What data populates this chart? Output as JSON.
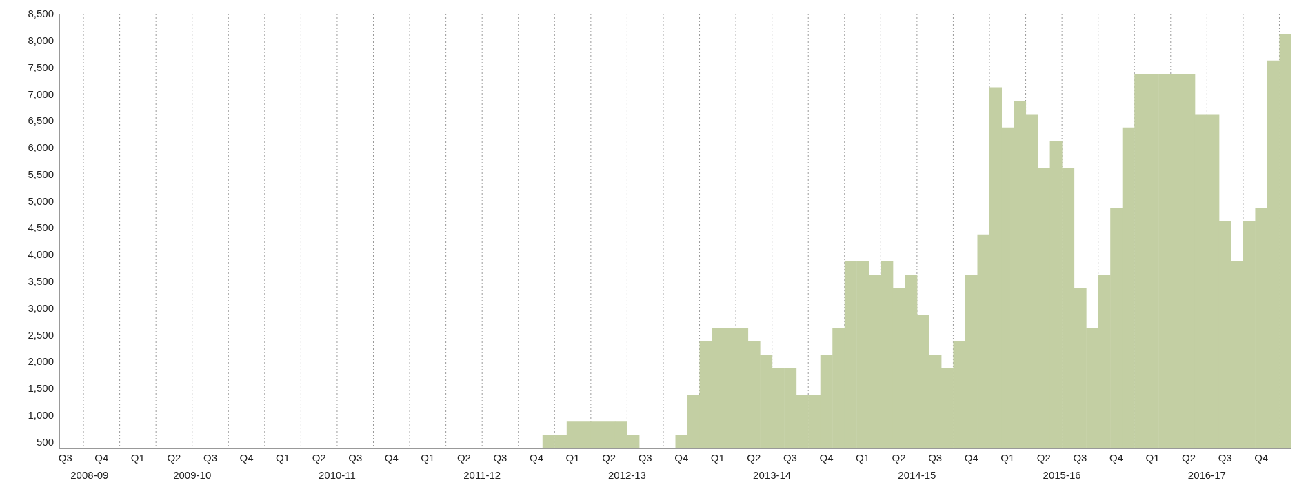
{
  "chart_data": {
    "type": "bar",
    "categories": [
      "Q3",
      null,
      null,
      "Q4",
      null,
      null,
      "Q1",
      null,
      null,
      "Q2",
      null,
      null,
      "Q3",
      null,
      null,
      "Q4",
      null,
      null,
      "Q1",
      null,
      null,
      "Q2",
      null,
      null,
      "Q3",
      null,
      null,
      "Q4",
      null,
      null,
      "Q1",
      null,
      null,
      "Q2",
      null,
      null,
      "Q3",
      null,
      null,
      "Q4",
      null,
      null,
      "Q1",
      null,
      null,
      "Q2",
      null,
      null,
      "Q3",
      null,
      null,
      "Q4",
      null,
      null,
      "Q1",
      null,
      null,
      "Q2",
      null,
      null,
      "Q3",
      null,
      null,
      "Q4",
      null,
      null,
      "Q1",
      null,
      null,
      "Q2",
      null,
      null,
      "Q3",
      null,
      null,
      "Q4",
      null,
      null,
      "Q1",
      null,
      null,
      "Q2",
      null,
      null,
      "Q3",
      null,
      null,
      "Q4",
      null,
      null,
      "Q1",
      null,
      null,
      "Q2",
      null,
      null,
      "Q3",
      null,
      null,
      "Q4",
      null,
      null
    ],
    "values": [
      null,
      null,
      null,
      null,
      null,
      null,
      null,
      null,
      null,
      null,
      null,
      null,
      null,
      null,
      null,
      null,
      null,
      null,
      null,
      null,
      null,
      null,
      null,
      null,
      null,
      null,
      null,
      null,
      null,
      null,
      null,
      null,
      null,
      null,
      null,
      null,
      null,
      null,
      null,
      null,
      625,
      625,
      875,
      875,
      875,
      875,
      875,
      625,
      null,
      null,
      null,
      625,
      1375,
      2375,
      2625,
      2625,
      2625,
      2375,
      2125,
      1875,
      1875,
      1375,
      1375,
      2125,
      2625,
      3875,
      3875,
      3625,
      3875,
      3375,
      3625,
      2875,
      2125,
      1875,
      2375,
      3625,
      4375,
      7125,
      6375,
      6875,
      6625,
      5625,
      6125,
      5625,
      3375,
      2625,
      3625,
      4875,
      6375,
      7375,
      7375,
      7375,
      7375,
      7375,
      6625,
      6625,
      4625,
      3875,
      4625,
      4875,
      7625,
      8125
    ],
    "color": "#c3cfa3",
    "ylim": [
      375,
      8500
    ],
    "yticks": [
      {
        "value": 500,
        "label": "500"
      },
      {
        "value": 1000,
        "label": "1,000"
      },
      {
        "value": 1500,
        "label": "1,500"
      },
      {
        "value": 2000,
        "label": "2,000"
      },
      {
        "value": 2500,
        "label": "2,500"
      },
      {
        "value": 3000,
        "label": "3,000"
      },
      {
        "value": 3500,
        "label": "3,500"
      },
      {
        "value": 4000,
        "label": "4,000"
      },
      {
        "value": 4500,
        "label": "4,500"
      },
      {
        "value": 5000,
        "label": "5,000"
      },
      {
        "value": 5500,
        "label": "5,500"
      },
      {
        "value": 6000,
        "label": "6,000"
      },
      {
        "value": 6500,
        "label": "6,500"
      },
      {
        "value": 7000,
        "label": "7,000"
      },
      {
        "value": 7500,
        "label": "7,500"
      },
      {
        "value": 8000,
        "label": "8,000"
      },
      {
        "value": 8500,
        "label": "8,500"
      }
    ],
    "grid": "x",
    "annotations": [
      "2008-09",
      "2009-10",
      "2010-11",
      "2011-12",
      "2012-13",
      "2013-14",
      "2014-15",
      "2015-16",
      "2016-17"
    ]
  }
}
